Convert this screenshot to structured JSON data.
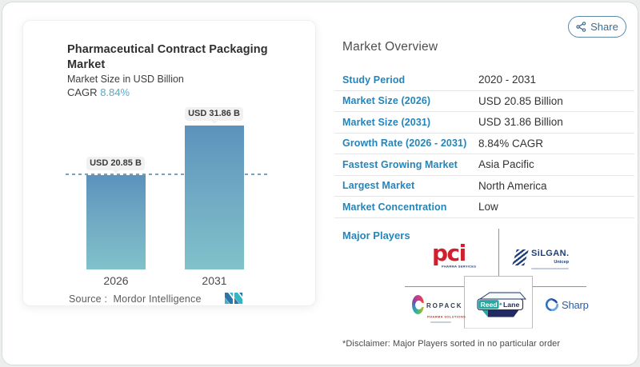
{
  "share_button": {
    "label": "Share"
  },
  "left_card": {
    "title": "Pharmaceutical Contract Packaging Market",
    "subtitle": "Market Size in USD Billion",
    "cagr_label": "CAGR",
    "cagr_value": "8.84%",
    "source_label": "Source :",
    "source_value": "Mordor Intelligence"
  },
  "chart_data": {
    "type": "bar",
    "categories": [
      "2026",
      "2031"
    ],
    "values": [
      20.85,
      31.86
    ],
    "value_labels": [
      "USD 20.85 B",
      "USD 31.86 B"
    ],
    "title": "Pharmaceutical Contract Packaging Market",
    "ylabel": "Market Size in USD Billion",
    "reference_line": 20.85,
    "bar_gradient_top": "#5c92bc",
    "bar_gradient_bottom": "#80c2ca"
  },
  "overview": {
    "heading": "Market Overview",
    "rows": [
      {
        "label": "Study Period",
        "value": "2020 - 2031"
      },
      {
        "label": "Market Size (2026)",
        "value": "USD 20.85 Billion"
      },
      {
        "label": "Market Size (2031)",
        "value": "USD 31.86 Billion"
      },
      {
        "label": "Growth Rate (2026 - 2031)",
        "value": "8.84% CAGR"
      },
      {
        "label": "Fastest Growing Market",
        "value": "Asia Pacific"
      },
      {
        "label": "Largest Market",
        "value": "North America"
      },
      {
        "label": "Market Concentration",
        "value": "Low"
      }
    ],
    "major_players_label": "Major Players",
    "players": {
      "pci": {
        "name": "pci",
        "sub": "PHARMA SERVICES"
      },
      "silgan": {
        "name": "SiLGAN.",
        "sub": "Unicep"
      },
      "ropack": {
        "name": "ROPACK",
        "sub": "PHARMA SOLUTIONS"
      },
      "reedlane": {
        "name1": "Reed",
        "name2": "Lane"
      },
      "sharp": {
        "name": "Sharp"
      }
    },
    "disclaimer": "*Disclaimer: Major Players sorted in no particular order"
  },
  "colors": {
    "accent_blue": "#2585ba",
    "cagr_accent": "#58a8c6",
    "bar_top": "#5c92bc",
    "bar_bottom": "#80c2ca"
  }
}
